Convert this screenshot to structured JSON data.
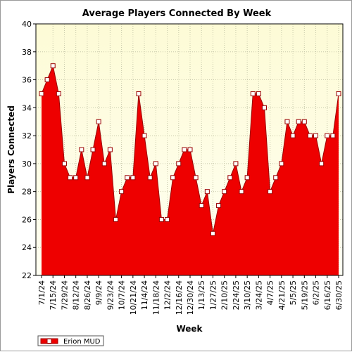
{
  "colors": {
    "fill": "#ee0000",
    "line": "#990000",
    "plot_bg_top": "#fdfbd6",
    "plot_bg_bottom": "#fffff2",
    "grid": "#c8c8aa",
    "marker_fill": "#ffffff"
  },
  "chart_data": {
    "type": "area",
    "title": "Average Players Connected By Week",
    "xlabel": "Week",
    "ylabel": "Players Connected",
    "ylim": [
      22,
      40
    ],
    "yticks": [
      22,
      24,
      26,
      28,
      30,
      32,
      34,
      36,
      38,
      40
    ],
    "grid": true,
    "legend_position": "bottom-left",
    "tick_labels": [
      "7/1/24",
      "7/15/24",
      "7/29/24",
      "8/12/24",
      "8/26/24",
      "9/9/24",
      "9/23/24",
      "10/7/24",
      "10/21/24",
      "11/4/24",
      "11/18/24",
      "12/2/24",
      "12/16/24",
      "12/30/24",
      "1/13/25",
      "1/27/25",
      "2/10/25",
      "2/24/25",
      "3/10/25",
      "3/24/25",
      "4/7/25",
      "4/21/25",
      "5/5/25",
      "5/19/25",
      "6/2/25",
      "6/16/25",
      "6/30/25"
    ],
    "series": [
      {
        "name": "Erion MUD",
        "values": [
          35,
          36,
          37,
          35,
          30,
          29,
          29,
          31,
          29,
          31,
          33,
          30,
          31,
          26,
          28,
          29,
          29,
          35,
          32,
          29,
          30,
          26,
          26,
          29,
          30,
          31,
          31,
          29,
          27,
          28,
          25,
          27,
          28,
          29,
          30,
          28,
          29,
          35,
          35,
          34,
          28,
          29,
          30,
          33,
          32,
          33,
          33,
          32,
          32,
          30,
          32,
          32,
          35
        ]
      }
    ]
  }
}
